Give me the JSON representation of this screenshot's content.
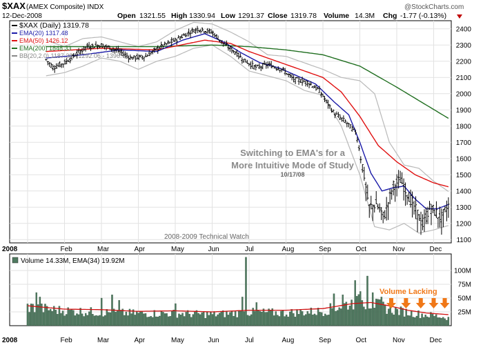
{
  "header": {
    "symbol": "$XAX",
    "name": "(AMEX Composite) INDX",
    "date": "12-Dec-2008",
    "quote": {
      "open_label": "Open",
      "open": "1321.55",
      "high_label": "High",
      "high": "1330.94",
      "low_label": "Low",
      "low": "1291.37",
      "close_label": "Close",
      "close": "1319.78",
      "volume_label": "Volume",
      "volume": "14.3M",
      "chg_label": "Chg",
      "chg": "-1.77 (-0.13%)"
    },
    "watermark": "@StockCharts.com"
  },
  "colors": {
    "price": "#000000",
    "ema20": "#1a1aa8",
    "ema50": "#e01010",
    "ema200": "#1f6e1f",
    "bb": "#b8b8b8",
    "volume_bar": "#4f7a60",
    "volume_ema": "#d01010",
    "annotation": "#8a8a8a",
    "arrow": "#f07818",
    "down": "#c00000"
  },
  "legend": [
    {
      "text": "$XAX (Daily) 1319.78",
      "color": "#000000"
    },
    {
      "text": "EMA(20) 1317.48",
      "color": "#1a1aa8"
    },
    {
      "text": "EMA(50) 1426.12",
      "color": "#e01010"
    },
    {
      "text": "EMA(200) 1848.33",
      "color": "#1f6e1f"
    },
    {
      "text": "BB(20,2.0) 1187.38 - 1292.06 - 1396.74",
      "color": "#888888"
    }
  ],
  "annotations": {
    "line1": "Switching to EMA's for a",
    "line2": "More Intuitive Mode of Study",
    "line3": "10/17/08",
    "footer": "2008-2009 Technical Watch",
    "volume_note": "Volume Lacking"
  },
  "volume_legend": "Volume 14.33M, EMA(34) 19.92M",
  "chart_data": {
    "type": "candlestick",
    "x_tick_labels": [
      "2008",
      "Feb",
      "Mar",
      "Apr",
      "May",
      "Jun",
      "Jul",
      "Aug",
      "Sep",
      "Oct",
      "Nov",
      "Dec"
    ],
    "y_ticks": [
      1100,
      1200,
      1300,
      1400,
      1500,
      1600,
      1700,
      1800,
      1900,
      2000,
      2100,
      2200,
      2300,
      2400
    ],
    "ylim": [
      1080,
      2450
    ],
    "volume_ticks": [
      {
        "value": 25,
        "label": "25M"
      },
      {
        "value": 50,
        "label": "50M"
      },
      {
        "value": 75,
        "label": "75M"
      },
      {
        "value": 100,
        "label": "100M"
      }
    ],
    "volume_ylim": [
      0,
      130
    ],
    "grid": true,
    "price_anchors": [
      {
        "m": 0.5,
        "v": 2210
      },
      {
        "m": 0.7,
        "v": 2160
      },
      {
        "m": 1.0,
        "v": 2190
      },
      {
        "m": 1.3,
        "v": 2240
      },
      {
        "m": 1.6,
        "v": 2290
      },
      {
        "m": 2.0,
        "v": 2300
      },
      {
        "m": 2.4,
        "v": 2270
      },
      {
        "m": 2.8,
        "v": 2220
      },
      {
        "m": 3.2,
        "v": 2230
      },
      {
        "m": 3.6,
        "v": 2290
      },
      {
        "m": 4.0,
        "v": 2330
      },
      {
        "m": 4.4,
        "v": 2380
      },
      {
        "m": 4.6,
        "v": 2400
      },
      {
        "m": 5.0,
        "v": 2380
      },
      {
        "m": 5.3,
        "v": 2310
      },
      {
        "m": 5.6,
        "v": 2260
      },
      {
        "m": 5.9,
        "v": 2200
      },
      {
        "m": 6.2,
        "v": 2160
      },
      {
        "m": 6.5,
        "v": 2180
      },
      {
        "m": 6.9,
        "v": 2150
      },
      {
        "m": 7.2,
        "v": 2090
      },
      {
        "m": 7.6,
        "v": 2070
      },
      {
        "m": 7.9,
        "v": 2020
      },
      {
        "m": 8.3,
        "v": 1880
      },
      {
        "m": 8.6,
        "v": 1830
      },
      {
        "m": 8.9,
        "v": 1760
      },
      {
        "m": 9.1,
        "v": 1520
      },
      {
        "m": 9.25,
        "v": 1300
      },
      {
        "m": 9.45,
        "v": 1320
      },
      {
        "m": 9.65,
        "v": 1240
      },
      {
        "m": 9.9,
        "v": 1430
      },
      {
        "m": 10.1,
        "v": 1470
      },
      {
        "m": 10.3,
        "v": 1380
      },
      {
        "m": 10.5,
        "v": 1290
      },
      {
        "m": 10.7,
        "v": 1190
      },
      {
        "m": 10.9,
        "v": 1300
      },
      {
        "m": 11.05,
        "v": 1270
      },
      {
        "m": 11.2,
        "v": 1230
      },
      {
        "m": 11.4,
        "v": 1310
      }
    ],
    "ema20": [
      {
        "m": 0.5,
        "v": 2220
      },
      {
        "m": 1.5,
        "v": 2240
      },
      {
        "m": 2.5,
        "v": 2270
      },
      {
        "m": 3.5,
        "v": 2260
      },
      {
        "m": 4.2,
        "v": 2330
      },
      {
        "m": 4.8,
        "v": 2370
      },
      {
        "m": 5.3,
        "v": 2320
      },
      {
        "m": 5.8,
        "v": 2250
      },
      {
        "m": 6.3,
        "v": 2190
      },
      {
        "m": 6.8,
        "v": 2160
      },
      {
        "m": 7.3,
        "v": 2110
      },
      {
        "m": 7.8,
        "v": 2060
      },
      {
        "m": 8.3,
        "v": 1950
      },
      {
        "m": 8.7,
        "v": 1870
      },
      {
        "m": 9.0,
        "v": 1700
      },
      {
        "m": 9.3,
        "v": 1510
      },
      {
        "m": 9.6,
        "v": 1400
      },
      {
        "m": 9.9,
        "v": 1420
      },
      {
        "m": 10.2,
        "v": 1430
      },
      {
        "m": 10.5,
        "v": 1350
      },
      {
        "m": 10.8,
        "v": 1290
      },
      {
        "m": 11.1,
        "v": 1290
      },
      {
        "m": 11.4,
        "v": 1317
      }
    ],
    "ema50": [
      {
        "m": 0.5,
        "v": 2260
      },
      {
        "m": 2.0,
        "v": 2280
      },
      {
        "m": 3.5,
        "v": 2270
      },
      {
        "m": 4.8,
        "v": 2330
      },
      {
        "m": 5.5,
        "v": 2310
      },
      {
        "m": 6.0,
        "v": 2260
      },
      {
        "m": 6.5,
        "v": 2220
      },
      {
        "m": 7.0,
        "v": 2180
      },
      {
        "m": 7.5,
        "v": 2140
      },
      {
        "m": 8.0,
        "v": 2100
      },
      {
        "m": 8.5,
        "v": 2010
      },
      {
        "m": 9.0,
        "v": 1860
      },
      {
        "m": 9.5,
        "v": 1680
      },
      {
        "m": 10.0,
        "v": 1580
      },
      {
        "m": 10.5,
        "v": 1500
      },
      {
        "m": 11.0,
        "v": 1450
      },
      {
        "m": 11.4,
        "v": 1426
      }
    ],
    "ema200": [
      {
        "m": 0.5,
        "v": 2290
      },
      {
        "m": 2.0,
        "v": 2290
      },
      {
        "m": 3.5,
        "v": 2290
      },
      {
        "m": 5.0,
        "v": 2300
      },
      {
        "m": 6.0,
        "v": 2290
      },
      {
        "m": 7.0,
        "v": 2270
      },
      {
        "m": 8.0,
        "v": 2240
      },
      {
        "m": 9.0,
        "v": 2170
      },
      {
        "m": 10.0,
        "v": 2040
      },
      {
        "m": 10.8,
        "v": 1930
      },
      {
        "m": 11.4,
        "v": 1848
      }
    ],
    "bb_upper": [
      {
        "m": 0.5,
        "v": 2330
      },
      {
        "m": 1.0,
        "v": 2290
      },
      {
        "m": 1.5,
        "v": 2340
      },
      {
        "m": 2.0,
        "v": 2350
      },
      {
        "m": 2.5,
        "v": 2320
      },
      {
        "m": 3.0,
        "v": 2290
      },
      {
        "m": 3.5,
        "v": 2320
      },
      {
        "m": 4.0,
        "v": 2390
      },
      {
        "m": 4.5,
        "v": 2440
      },
      {
        "m": 5.0,
        "v": 2430
      },
      {
        "m": 5.5,
        "v": 2380
      },
      {
        "m": 6.0,
        "v": 2320
      },
      {
        "m": 6.5,
        "v": 2240
      },
      {
        "m": 7.0,
        "v": 2230
      },
      {
        "m": 7.5,
        "v": 2190
      },
      {
        "m": 8.0,
        "v": 2150
      },
      {
        "m": 8.5,
        "v": 2100
      },
      {
        "m": 9.0,
        "v": 2080
      },
      {
        "m": 9.4,
        "v": 2000
      },
      {
        "m": 9.8,
        "v": 1700
      },
      {
        "m": 10.2,
        "v": 1560
      },
      {
        "m": 10.6,
        "v": 1540
      },
      {
        "m": 11.0,
        "v": 1460
      },
      {
        "m": 11.4,
        "v": 1397
      }
    ],
    "bb_lower": [
      {
        "m": 0.5,
        "v": 2110
      },
      {
        "m": 1.0,
        "v": 2130
      },
      {
        "m": 1.5,
        "v": 2170
      },
      {
        "m": 2.0,
        "v": 2220
      },
      {
        "m": 2.5,
        "v": 2200
      },
      {
        "m": 3.0,
        "v": 2150
      },
      {
        "m": 3.5,
        "v": 2200
      },
      {
        "m": 4.0,
        "v": 2230
      },
      {
        "m": 4.5,
        "v": 2280
      },
      {
        "m": 5.0,
        "v": 2300
      },
      {
        "m": 5.5,
        "v": 2230
      },
      {
        "m": 6.0,
        "v": 2140
      },
      {
        "m": 6.5,
        "v": 2110
      },
      {
        "m": 7.0,
        "v": 2080
      },
      {
        "m": 7.5,
        "v": 2020
      },
      {
        "m": 8.0,
        "v": 1990
      },
      {
        "m": 8.5,
        "v": 1800
      },
      {
        "m": 9.0,
        "v": 1500
      },
      {
        "m": 9.4,
        "v": 1180
      },
      {
        "m": 9.8,
        "v": 1160
      },
      {
        "m": 10.2,
        "v": 1200
      },
      {
        "m": 10.6,
        "v": 1140
      },
      {
        "m": 11.0,
        "v": 1160
      },
      {
        "m": 11.4,
        "v": 1187
      }
    ],
    "volume_anchors": [
      {
        "m": 0.0,
        "v": 34
      },
      {
        "m": 0.5,
        "v": 30
      },
      {
        "m": 1.0,
        "v": 27
      },
      {
        "m": 2.0,
        "v": 24
      },
      {
        "m": 3.0,
        "v": 22
      },
      {
        "m": 4.0,
        "v": 22
      },
      {
        "m": 5.0,
        "v": 20
      },
      {
        "m": 6.0,
        "v": 24
      },
      {
        "m": 7.0,
        "v": 23
      },
      {
        "m": 8.0,
        "v": 26
      },
      {
        "m": 8.7,
        "v": 40
      },
      {
        "m": 9.1,
        "v": 44
      },
      {
        "m": 9.6,
        "v": 34
      },
      {
        "m": 10.0,
        "v": 27
      },
      {
        "m": 10.5,
        "v": 22
      },
      {
        "m": 11.0,
        "v": 18
      },
      {
        "m": 11.4,
        "v": 14
      }
    ],
    "volume_spikes": [
      {
        "m": 0.25,
        "v": 60
      },
      {
        "m": 0.35,
        "v": 52
      },
      {
        "m": 2.0,
        "v": 50
      },
      {
        "m": 2.3,
        "v": 56
      },
      {
        "m": 2.5,
        "v": 46
      },
      {
        "m": 4.0,
        "v": 40
      },
      {
        "m": 5.9,
        "v": 124
      },
      {
        "m": 5.8,
        "v": 52
      },
      {
        "m": 6.2,
        "v": 42
      },
      {
        "m": 8.3,
        "v": 58
      },
      {
        "m": 8.55,
        "v": 56
      },
      {
        "m": 8.85,
        "v": 82
      },
      {
        "m": 9.0,
        "v": 62
      },
      {
        "m": 9.2,
        "v": 90
      },
      {
        "m": 9.35,
        "v": 60
      },
      {
        "m": 9.6,
        "v": 52
      }
    ],
    "volume_ema": [
      {
        "m": 0.0,
        "v": 36
      },
      {
        "m": 1.0,
        "v": 30
      },
      {
        "m": 2.0,
        "v": 29
      },
      {
        "m": 3.0,
        "v": 26
      },
      {
        "m": 4.0,
        "v": 27
      },
      {
        "m": 5.0,
        "v": 25
      },
      {
        "m": 6.0,
        "v": 28
      },
      {
        "m": 7.0,
        "v": 28
      },
      {
        "m": 8.0,
        "v": 31
      },
      {
        "m": 8.8,
        "v": 40
      },
      {
        "m": 9.3,
        "v": 42
      },
      {
        "m": 9.8,
        "v": 36
      },
      {
        "m": 10.3,
        "v": 28
      },
      {
        "m": 10.8,
        "v": 23
      },
      {
        "m": 11.4,
        "v": 20
      }
    ],
    "arrow_months": [
      9.85,
      10.25,
      10.65,
      11.0,
      11.3
    ]
  }
}
